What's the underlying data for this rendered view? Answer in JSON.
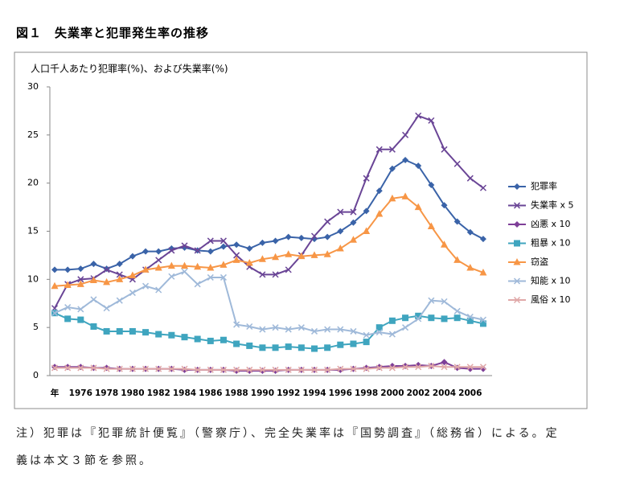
{
  "chart_data": {
    "type": "line",
    "title": "図１　失業率と犯罪発生率の推移",
    "y_label": "人口千人あたり犯罪率(%)、および失業率(%)",
    "note": [
      "注）犯罪は『犯罪統計便覧』（警察庁）、完全失業率は『国勢調査』（総務省）による。定",
      "義は本文３節を参照。"
    ],
    "categories": [
      "年",
      null,
      "1976",
      null,
      "1978",
      null,
      "1980",
      null,
      "1982",
      null,
      "1984",
      null,
      "1986",
      null,
      "1988",
      null,
      "1990",
      null,
      "1992",
      null,
      "1994",
      null,
      "1996",
      null,
      "1998",
      null,
      "2000",
      null,
      "2002",
      null,
      "2004",
      null,
      "2006",
      null
    ],
    "ylim": [
      0,
      30
    ],
    "yticks": [
      0,
      5,
      10,
      15,
      20,
      25,
      30
    ],
    "grid": false,
    "legend": "right",
    "series": [
      {
        "name": "犯罪率",
        "color": "#3a63a8",
        "marker": "diamond",
        "values": [
          11.0,
          11.0,
          11.1,
          11.6,
          11.1,
          11.6,
          12.4,
          12.9,
          12.9,
          13.2,
          13.3,
          13.0,
          12.9,
          13.4,
          13.6,
          13.2,
          13.8,
          14.0,
          14.4,
          14.3,
          14.2,
          14.4,
          15.0,
          15.9,
          17.1,
          19.2,
          21.5,
          22.4,
          21.8,
          19.8,
          17.7,
          16.0,
          14.9,
          14.2
        ]
      },
      {
        "name": "失業率 x 5",
        "color": "#6a4596",
        "marker": "x",
        "values": [
          7.0,
          9.5,
          10.0,
          10.1,
          11.0,
          10.5,
          10.0,
          11.0,
          12.0,
          13.0,
          13.5,
          13.0,
          14.0,
          14.0,
          12.5,
          11.3,
          10.5,
          10.5,
          11.0,
          12.5,
          14.5,
          16.0,
          17.0,
          17.0,
          20.5,
          23.5,
          23.5,
          25.0,
          27.0,
          26.5,
          23.5,
          22.0,
          20.5,
          19.5
        ]
      },
      {
        "name": "凶悪 x 10",
        "color": "#7e3f98",
        "marker": "diamond",
        "values": [
          0.9,
          0.9,
          0.9,
          0.8,
          0.8,
          0.7,
          0.7,
          0.7,
          0.7,
          0.7,
          0.6,
          0.6,
          0.6,
          0.6,
          0.5,
          0.5,
          0.5,
          0.5,
          0.6,
          0.6,
          0.6,
          0.6,
          0.6,
          0.7,
          0.8,
          0.9,
          1.0,
          1.0,
          1.1,
          1.0,
          1.4,
          0.8,
          0.7,
          0.7
        ]
      },
      {
        "name": "粗暴 x 10",
        "color": "#3fa5bf",
        "marker": "square",
        "values": [
          6.5,
          5.9,
          5.8,
          5.1,
          4.6,
          4.6,
          4.6,
          4.5,
          4.3,
          4.2,
          4.0,
          3.8,
          3.6,
          3.7,
          3.3,
          3.1,
          2.9,
          2.9,
          3.0,
          2.9,
          2.8,
          2.9,
          3.2,
          3.3,
          3.5,
          5.0,
          5.7,
          6.0,
          6.2,
          6.0,
          5.9,
          6.0,
          5.7,
          5.4
        ]
      },
      {
        "name": "窃盗",
        "color": "#f79646",
        "marker": "triangle",
        "values": [
          9.3,
          9.4,
          9.5,
          9.9,
          9.7,
          10.0,
          10.4,
          11.0,
          11.2,
          11.4,
          11.4,
          11.3,
          11.2,
          11.5,
          12.0,
          11.7,
          12.1,
          12.3,
          12.6,
          12.4,
          12.5,
          12.6,
          13.2,
          14.1,
          15.0,
          16.8,
          18.4,
          18.6,
          17.5,
          15.5,
          13.6,
          12.0,
          11.2,
          10.7
        ]
      },
      {
        "name": "知能 x 10",
        "color": "#9fb9d9",
        "marker": "x",
        "values": [
          6.5,
          7.1,
          6.9,
          7.9,
          7.0,
          7.8,
          8.6,
          9.3,
          8.9,
          10.3,
          10.8,
          9.5,
          10.2,
          10.2,
          5.3,
          5.1,
          4.8,
          5.0,
          4.8,
          5.0,
          4.6,
          4.8,
          4.8,
          4.6,
          4.2,
          4.5,
          4.3,
          5.0,
          5.9,
          7.8,
          7.7,
          6.7,
          6.1,
          5.8
        ]
      },
      {
        "name": "風俗 x 10",
        "color": "#e0a8a8",
        "marker": "x",
        "values": [
          0.8,
          0.8,
          0.8,
          0.8,
          0.7,
          0.7,
          0.7,
          0.7,
          0.7,
          0.7,
          0.7,
          0.6,
          0.6,
          0.6,
          0.6,
          0.6,
          0.6,
          0.6,
          0.6,
          0.6,
          0.6,
          0.6,
          0.7,
          0.7,
          0.7,
          0.8,
          0.8,
          0.9,
          0.9,
          1.0,
          0.9,
          0.9,
          0.9,
          0.9
        ]
      }
    ]
  }
}
